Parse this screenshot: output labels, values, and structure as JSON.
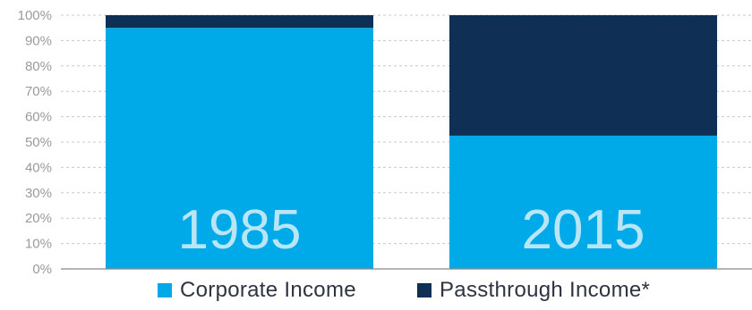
{
  "chart_data": {
    "type": "bar",
    "stacked": true,
    "categories": [
      "1985",
      "2015"
    ],
    "series": [
      {
        "name": "Corporate Income",
        "values": [
          95,
          52.5
        ],
        "color": "#00a9e8"
      },
      {
        "name": "Passthrough Income*",
        "values": [
          5,
          47.5
        ],
        "color": "#0f2f55"
      }
    ],
    "ylim": [
      0,
      100
    ],
    "yticks": [
      "0%",
      "10%",
      "20%",
      "30%",
      "40%",
      "50%",
      "60%",
      "70%",
      "80%",
      "90%",
      "100%"
    ],
    "grid": true,
    "legend": "bottom",
    "colors": {
      "tick": "#9a9a9a",
      "grid": "#c8c8c8",
      "axis": "#888888",
      "category_text": "#b9e6f7"
    }
  }
}
